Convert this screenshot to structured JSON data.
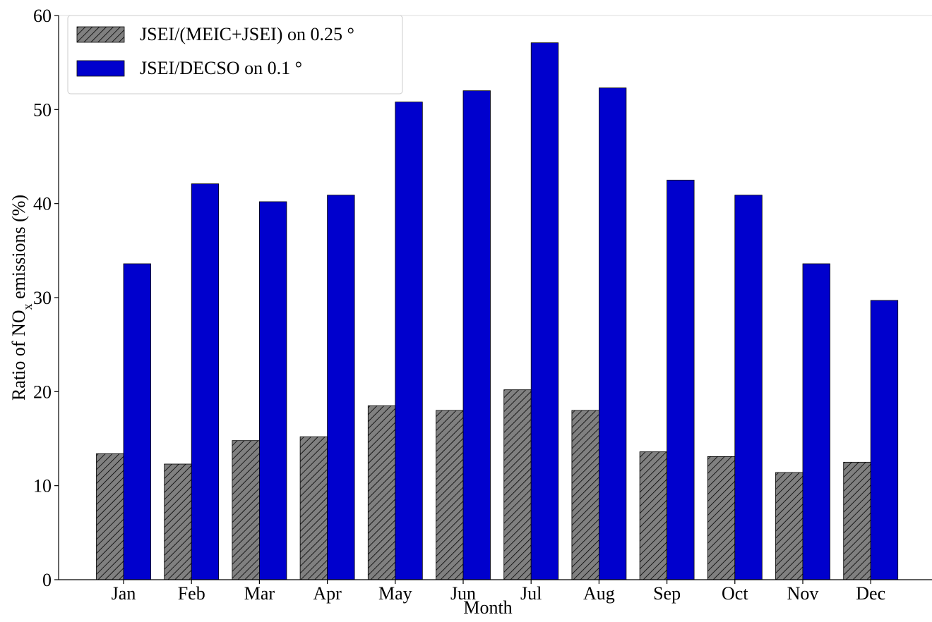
{
  "chart_data": {
    "type": "bar",
    "xlabel": "Month",
    "ylabel": [
      "Ratio of  NO",
      "x",
      " emissions (%)"
    ],
    "categories": [
      "Jan",
      "Feb",
      "Mar",
      "Apr",
      "May",
      "Jun",
      "Jul",
      "Aug",
      "Sep",
      "Oct",
      "Nov",
      "Dec"
    ],
    "series": [
      {
        "name": "JSEI/(MEIC+JSEI) on 0.25 °",
        "color": "#808080",
        "hatch": true,
        "values": [
          13.4,
          12.3,
          14.8,
          15.2,
          18.5,
          18.0,
          20.2,
          18.0,
          13.6,
          13.1,
          11.4,
          12.5
        ]
      },
      {
        "name": "JSEI/DECSO on 0.1 °",
        "color": "#0000cd",
        "hatch": false,
        "values": [
          33.6,
          42.1,
          40.2,
          40.9,
          50.8,
          52.0,
          57.1,
          52.3,
          42.5,
          40.9,
          33.6,
          29.7
        ]
      }
    ],
    "ylim": [
      0,
      60
    ],
    "yticks": [
      0,
      10,
      20,
      30,
      40,
      50,
      60
    ],
    "legend": "upper-left"
  }
}
